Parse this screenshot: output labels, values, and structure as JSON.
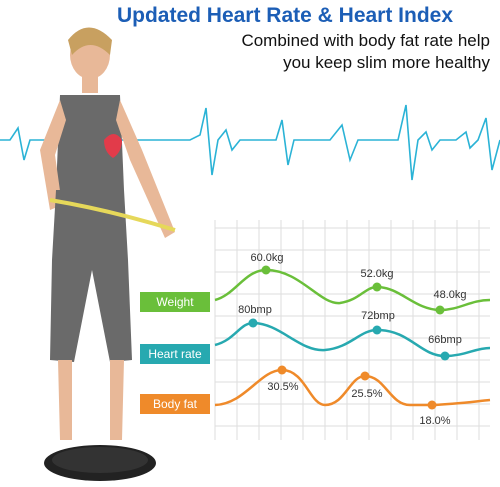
{
  "header": {
    "title": "Updated Heart Rate & Heart Index",
    "subtitle_lines": [
      "Combined with body fat rate help",
      "you keep slim more healthy"
    ]
  },
  "metrics": [
    {
      "label": "Weight",
      "readings": [
        "60.0kg",
        "52.0kg",
        "48.0kg"
      ]
    },
    {
      "label": "Heart rate",
      "readings": [
        "80bmp",
        "72bmp",
        "66bmp"
      ]
    },
    {
      "label": "Body fat",
      "readings": [
        "30.5%",
        "25.5%",
        "18.0%"
      ]
    }
  ]
}
